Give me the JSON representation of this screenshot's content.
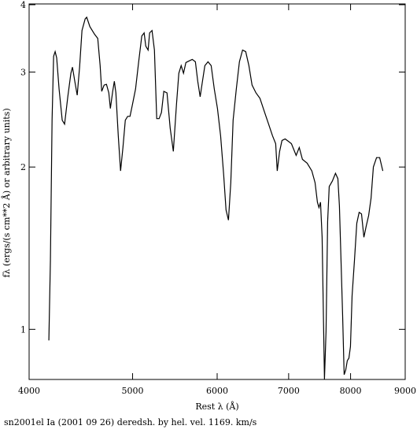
{
  "chart_data": {
    "type": "line",
    "xlabel": "Rest λ (Å)",
    "ylabel": "fλ (ergs/(s cm**2 Å) or arbitrary units)",
    "caption": "sn2001el Ia (2001 09 26) deredsh. by hel. vel.  1169. km/s",
    "xscale": "log",
    "yscale": "log",
    "color": "#000000",
    "xlim": [
      4000,
      9000
    ],
    "xticks": [
      4000,
      5000,
      6000,
      7000,
      8000,
      9000
    ],
    "ylim": [
      0.81,
      4
    ],
    "yticks": [
      1,
      2,
      3,
      4
    ],
    "x": [
      4174,
      4188,
      4203,
      4217,
      4231,
      4245,
      4267,
      4296,
      4318,
      4348,
      4377,
      4392,
      4414,
      4437,
      4460,
      4483,
      4514,
      4529,
      4560,
      4607,
      4638,
      4662,
      4678,
      4702,
      4726,
      4750,
      4766,
      4790,
      4807,
      4823,
      4848,
      4872,
      4897,
      4922,
      4947,
      4972,
      4998,
      5032,
      5066,
      5100,
      5126,
      5144,
      5170,
      5187,
      5214,
      5241,
      5267,
      5294,
      5321,
      5348,
      5385,
      5422,
      5459,
      5496,
      5524,
      5552,
      5580,
      5609,
      5647,
      5686,
      5725,
      5754,
      5784,
      5813,
      5843,
      5883,
      5923,
      5963,
      6004,
      6045,
      6085,
      6116,
      6148,
      6179,
      6210,
      6253,
      6295,
      6338,
      6381,
      6425,
      6469,
      6524,
      6580,
      6647,
      6704,
      6761,
      6807,
      6830,
      6865,
      6900,
      6947,
      6994,
      7042,
      7114,
      7162,
      7211,
      7285,
      7359,
      7410,
      7448,
      7473,
      7498,
      7524,
      7549,
      7562,
      7588,
      7614,
      7640,
      7692,
      7744,
      7784,
      7810,
      7837,
      7864,
      7890,
      7917,
      7944,
      7971,
      7998,
      8026,
      8067,
      8108,
      8149,
      8191,
      8233,
      8276,
      8318,
      8361,
      8403,
      8461,
      8518,
      8576
    ],
    "values": [
      0.954,
      1.341,
      2.443,
      3.21,
      3.274,
      3.188,
      2.791,
      2.443,
      2.402,
      2.7,
      2.984,
      3.064,
      2.885,
      2.718,
      3.064,
      3.583,
      3.766,
      3.792,
      3.643,
      3.524,
      3.465,
      3.084,
      2.763,
      2.838,
      2.847,
      2.745,
      2.568,
      2.763,
      2.885,
      2.745,
      2.285,
      1.967,
      2.174,
      2.443,
      2.483,
      2.483,
      2.61,
      2.791,
      3.135,
      3.5,
      3.547,
      3.352,
      3.296,
      3.547,
      3.583,
      3.296,
      2.459,
      2.459,
      2.525,
      2.763,
      2.745,
      2.362,
      2.138,
      2.61,
      2.984,
      3.084,
      2.985,
      3.125,
      3.146,
      3.167,
      3.135,
      2.885,
      2.7,
      2.885,
      3.084,
      3.135,
      3.084,
      2.791,
      2.568,
      2.285,
      1.934,
      1.665,
      1.594,
      1.871,
      2.443,
      2.791,
      3.135,
      3.296,
      3.274,
      3.084,
      2.838,
      2.745,
      2.682,
      2.525,
      2.402,
      2.285,
      2.21,
      1.967,
      2.138,
      2.24,
      2.255,
      2.233,
      2.21,
      2.102,
      2.174,
      2.067,
      2.033,
      1.967,
      1.871,
      1.721,
      1.682,
      1.721,
      1.482,
      0.993,
      0.808,
      0.993,
      1.584,
      1.84,
      1.884,
      1.947,
      1.903,
      1.693,
      1.341,
      1.062,
      0.824,
      0.841,
      0.875,
      0.884,
      0.929,
      1.154,
      1.341,
      1.573,
      1.648,
      1.637,
      1.482,
      1.557,
      1.626,
      1.75,
      2.0,
      2.082,
      2.082,
      1.967
    ]
  }
}
